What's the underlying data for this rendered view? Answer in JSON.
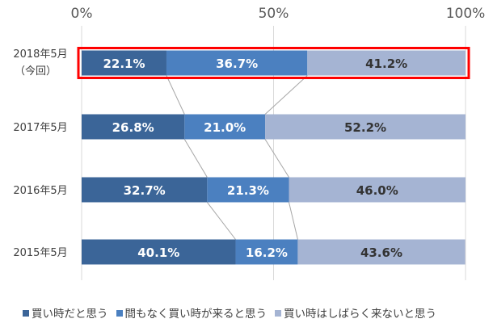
{
  "chart_data": {
    "type": "bar",
    "orientation": "horizontal",
    "stacked": true,
    "categories": [
      "2018年5月",
      "2017年5月",
      "2016年5月",
      "2015年5月"
    ],
    "category_sublabels": [
      "（今回）",
      "",
      "",
      ""
    ],
    "series": [
      {
        "name": "買い時だと思う",
        "values": [
          22.1,
          26.8,
          32.7,
          40.1
        ],
        "labels": [
          "22.1%",
          "26.8%",
          "32.7%",
          "40.1%"
        ],
        "color": "#3b6598",
        "label_color": "#ffffff"
      },
      {
        "name": "間もなく買い時が来ると思う",
        "values": [
          36.7,
          21.0,
          21.3,
          16.2
        ],
        "labels": [
          "36.7%",
          "21.0%",
          "21.3%",
          "16.2%"
        ],
        "color": "#4b80c0",
        "label_color": "#ffffff"
      },
      {
        "name": "買い時はしばらく来ないと思う",
        "values": [
          41.2,
          52.2,
          46.0,
          43.6
        ],
        "labels": [
          "41.2%",
          "52.2%",
          "46.0%",
          "43.6%"
        ],
        "color": "#a5b4d3",
        "label_color": "#333333"
      }
    ],
    "xlim": [
      0,
      100
    ],
    "x_ticks": [
      "0%",
      "50%",
      "100%"
    ],
    "x_tick_values": [
      0,
      50,
      100
    ],
    "grid": true,
    "series_lines": true,
    "highlight_category": "2018年5月",
    "highlight_color": "#ff0000",
    "legend_position": "bottom"
  }
}
